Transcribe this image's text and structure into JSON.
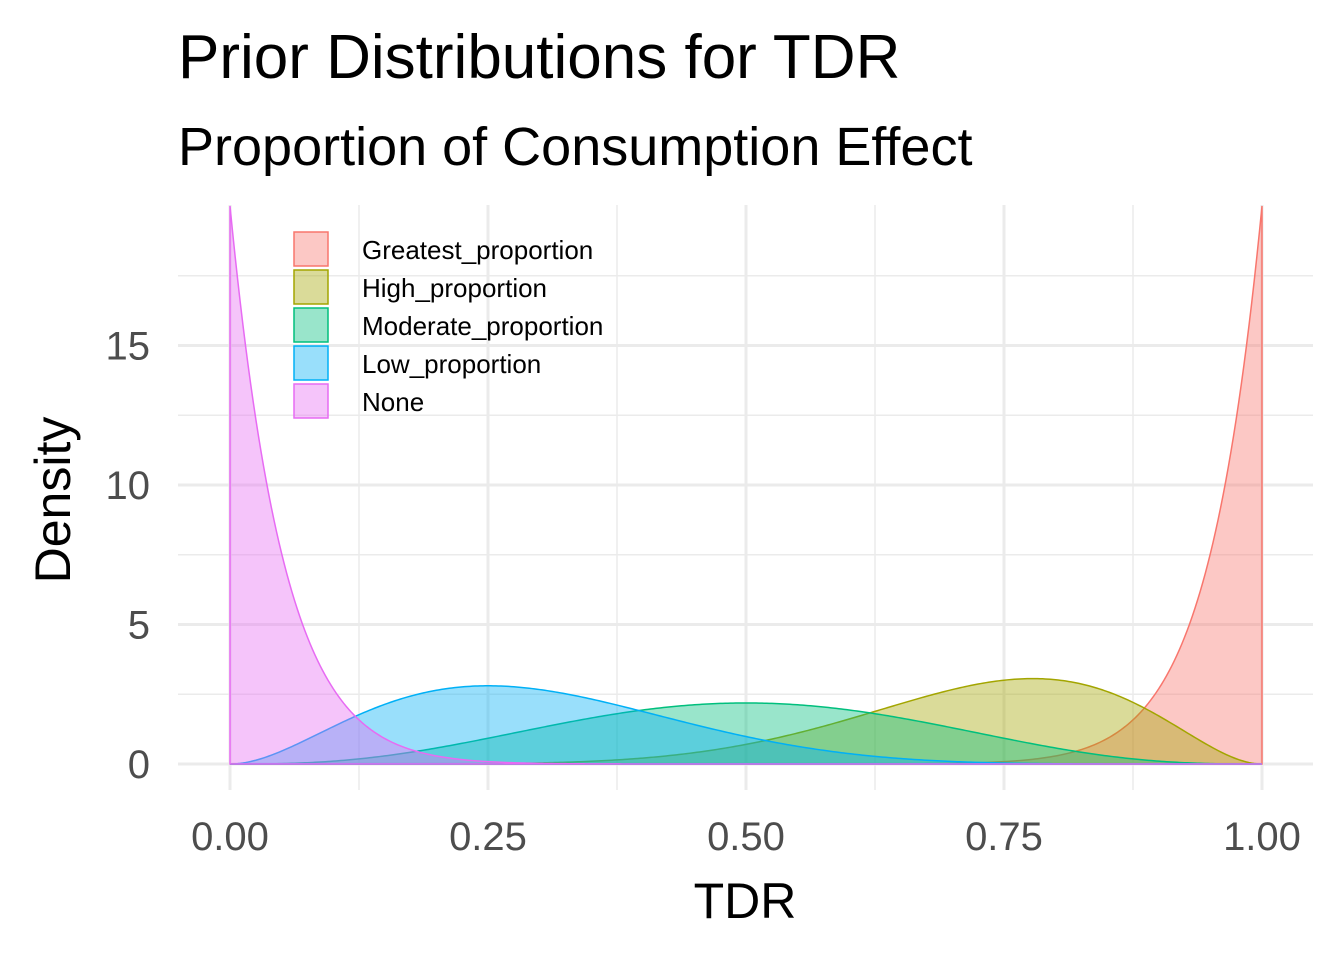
{
  "chart_data": {
    "type": "area",
    "title": "Prior Distributions for TDR",
    "subtitle": "Proportion of Consumption Effect",
    "xlabel": "TDR",
    "ylabel": "Density",
    "xlim": [
      0,
      1
    ],
    "ylim": [
      0,
      19.4
    ],
    "x_ticks": [
      "0.00",
      "0.25",
      "0.50",
      "0.75",
      "1.00"
    ],
    "y_ticks": [
      "0",
      "5",
      "10",
      "15"
    ],
    "grid": true,
    "legend_position": "top-left",
    "series": [
      {
        "name": "Greatest_proportion",
        "color": "#F8766D",
        "beta": [
          20,
          1
        ]
      },
      {
        "name": "High_proportion",
        "color": "#A3A500",
        "beta": [
          8,
          3
        ]
      },
      {
        "name": "Moderate_proportion",
        "color": "#00BF7D",
        "beta": [
          4,
          4
        ]
      },
      {
        "name": "Low_proportion",
        "color": "#00B0F6",
        "beta": [
          3,
          7
        ]
      },
      {
        "name": "None",
        "color": "#E76BF3",
        "beta": [
          1,
          20
        ]
      }
    ]
  }
}
